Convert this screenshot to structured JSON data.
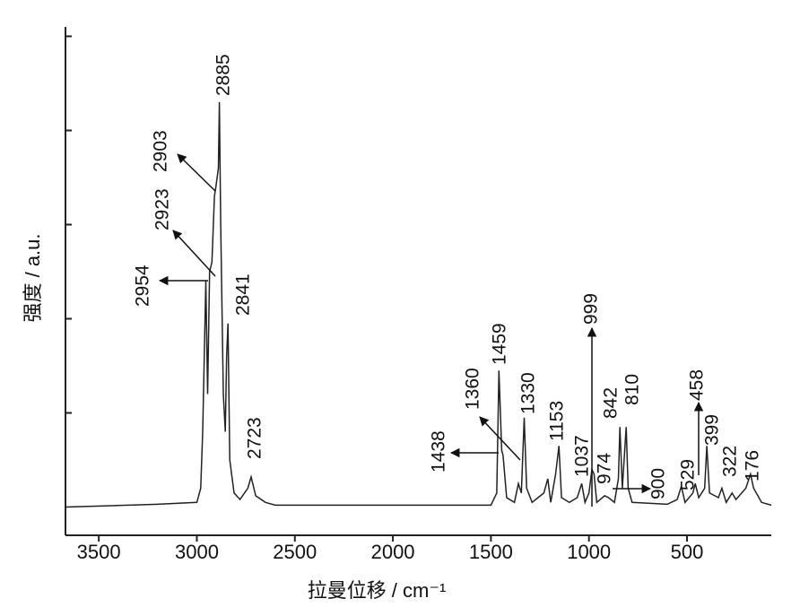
{
  "chart_data": {
    "type": "line",
    "x_label": "拉曼位移 / cm⁻¹",
    "y_label": "强度 / a.u.",
    "x": [
      3670,
      3200,
      3000,
      2980,
      2970,
      2960,
      2954,
      2945,
      2935,
      2923,
      2910,
      2903,
      2890,
      2885,
      2878,
      2865,
      2855,
      2848,
      2841,
      2832,
      2810,
      2780,
      2740,
      2723,
      2700,
      2650,
      2600,
      1500,
      1470,
      1459,
      1445,
      1438,
      1420,
      1380,
      1360,
      1345,
      1330,
      1318,
      1290,
      1260,
      1230,
      1210,
      1195,
      1170,
      1153,
      1140,
      1100,
      1060,
      1037,
      1020,
      1000,
      985,
      974,
      960,
      920,
      900,
      870,
      850,
      842,
      830,
      810,
      800,
      780,
      600,
      550,
      529,
      510,
      470,
      458,
      440,
      410,
      399,
      385,
      340,
      322,
      300,
      270,
      250,
      200,
      176,
      160,
      120,
      70
    ],
    "values": [
      0,
      0.03,
      0.05,
      0.2,
      0.8,
      1.8,
      2.4,
      1.2,
      2.5,
      2.6,
      3.3,
      3.4,
      3.6,
      4.3,
      3.0,
      1.2,
      0.8,
      1.6,
      1.95,
      0.5,
      0.15,
      0.08,
      0.2,
      0.32,
      0.12,
      0.05,
      0.02,
      0.02,
      0.15,
      1.45,
      0.6,
      0.55,
      0.1,
      0.05,
      0.25,
      0.15,
      0.95,
      0.2,
      0.05,
      0.1,
      0.15,
      0.3,
      0.05,
      0.35,
      0.65,
      0.1,
      0.05,
      0.1,
      0.25,
      0.05,
      0.15,
      0.4,
      0.35,
      0.05,
      0.12,
      0.1,
      0.05,
      0.3,
      0.85,
      0.2,
      0.85,
      0.2,
      0.05,
      0.03,
      0.08,
      0.22,
      0.05,
      0.15,
      0.25,
      0.1,
      0.2,
      0.65,
      0.15,
      0.1,
      0.2,
      0.05,
      0.15,
      0.08,
      0.2,
      0.35,
      0.2,
      0.05,
      0.02
    ],
    "color": "#222222",
    "xlim": [
      3670,
      70
    ],
    "xticks": [
      3500,
      3000,
      2500,
      2000,
      1500,
      1000,
      500
    ],
    "ylim": [
      -0.3,
      5.1
    ],
    "yticks": [
      1,
      2,
      3,
      4,
      5
    ],
    "annotations": [
      "2954",
      "2903",
      "2923",
      "2885",
      "2841",
      "2723",
      "1438",
      "1360",
      "1459",
      "1330",
      "1153",
      "1037",
      "999",
      "974",
      "842",
      "810",
      "900",
      "529",
      "458",
      "399",
      "322",
      "176"
    ]
  }
}
